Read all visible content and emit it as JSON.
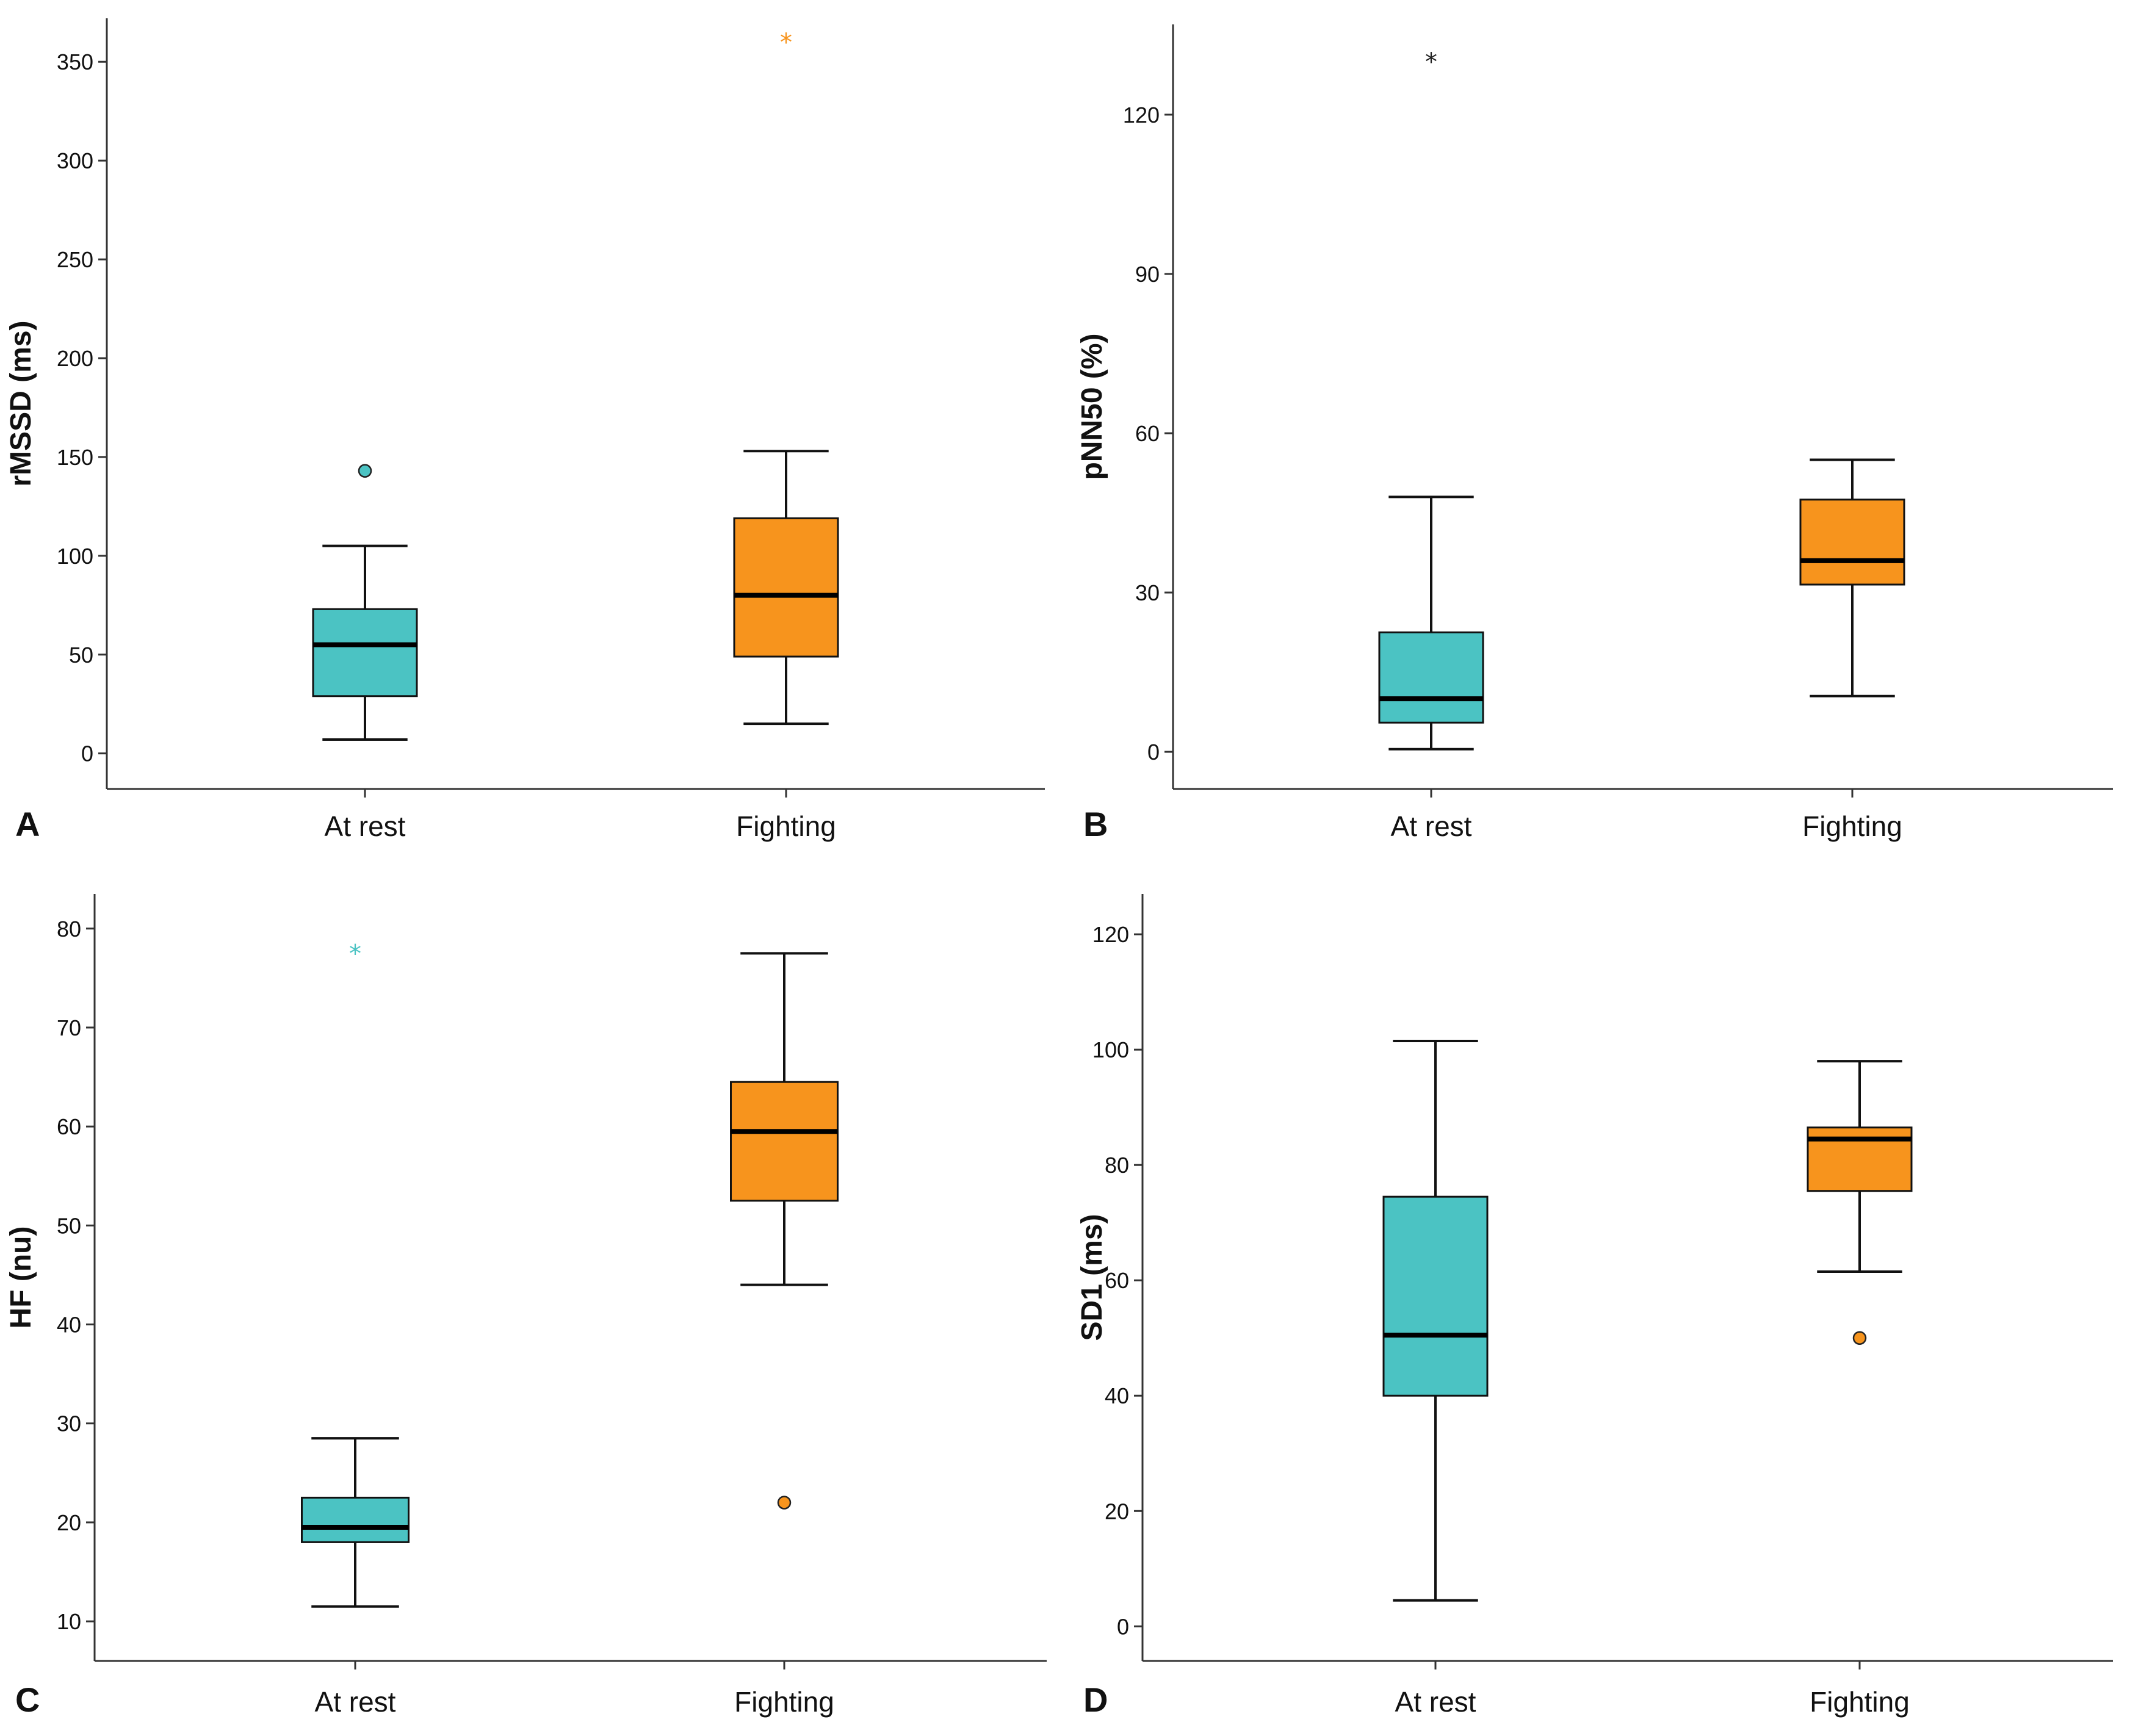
{
  "figure": {
    "colors": {
      "at_rest": "#4bc3c3",
      "fighting": "#f7941d",
      "axis": "#333333",
      "median": "#000000"
    }
  },
  "chart_data": [
    {
      "panel": "A",
      "type": "box",
      "categories": [
        "At rest",
        "Fighting"
      ],
      "ylabel": "rMSSD (ms)",
      "ylim": [
        -18,
        372
      ],
      "yticks": [
        0,
        50,
        100,
        150,
        200,
        250,
        300,
        350
      ],
      "boxes": [
        {
          "category": "At rest",
          "min": 7,
          "q1": 29,
          "median": 55,
          "q3": 73,
          "max": 105,
          "color": "#4bc3c3",
          "outliers": [
            {
              "value": 143,
              "marker": "circle",
              "color": "#4bc3c3"
            }
          ]
        },
        {
          "category": "Fighting",
          "min": 15,
          "q1": 49,
          "median": 80,
          "q3": 119,
          "max": 153,
          "color": "#f7941d",
          "outliers": [
            {
              "value": 360,
              "marker": "star",
              "color": "#f7941d"
            }
          ]
        }
      ]
    },
    {
      "panel": "B",
      "type": "box",
      "categories": [
        "At rest",
        "Fighting"
      ],
      "ylabel": "pNN50 (%)",
      "ylim": [
        -7,
        137
      ],
      "yticks": [
        0,
        30,
        60,
        90,
        120
      ],
      "boxes": [
        {
          "category": "At rest",
          "min": 0.5,
          "q1": 5.5,
          "median": 10,
          "q3": 22.5,
          "max": 48,
          "color": "#4bc3c3",
          "outliers": [
            {
              "value": 130,
              "marker": "star",
              "color": "#222222"
            }
          ]
        },
        {
          "category": "Fighting",
          "min": 10.5,
          "q1": 31.5,
          "median": 36,
          "q3": 47.5,
          "max": 55,
          "color": "#f7941d",
          "outliers": []
        }
      ]
    },
    {
      "panel": "C",
      "type": "box",
      "categories": [
        "At rest",
        "Fighting"
      ],
      "ylabel": "HF (nu)",
      "ylim": [
        6,
        83.5
      ],
      "yticks": [
        10,
        20,
        30,
        40,
        50,
        60,
        70,
        80
      ],
      "boxes": [
        {
          "category": "At rest",
          "min": 11.5,
          "q1": 18,
          "median": 19.5,
          "q3": 22.5,
          "max": 28.5,
          "color": "#4bc3c3",
          "outliers": [
            {
              "value": 77.5,
              "marker": "star",
              "color": "#4bc3c3"
            }
          ]
        },
        {
          "category": "Fighting",
          "min": 44,
          "q1": 52.5,
          "median": 59.5,
          "q3": 64.5,
          "max": 77.5,
          "color": "#f7941d",
          "outliers": [
            {
              "value": 22,
              "marker": "circle",
              "color": "#f7941d"
            }
          ]
        }
      ]
    },
    {
      "panel": "D",
      "type": "box",
      "categories": [
        "At rest",
        "Fighting"
      ],
      "ylabel": "SD1 (ms)",
      "ylim": [
        -6,
        127
      ],
      "yticks": [
        0,
        20,
        40,
        60,
        80,
        100,
        120
      ],
      "boxes": [
        {
          "category": "At rest",
          "min": 4.5,
          "q1": 40,
          "median": 50.5,
          "q3": 74.5,
          "max": 101.5,
          "color": "#4bc3c3",
          "outliers": []
        },
        {
          "category": "Fighting",
          "min": 61.5,
          "q1": 75.5,
          "median": 84.5,
          "q3": 86.5,
          "max": 98,
          "color": "#f7941d",
          "outliers": [
            {
              "value": 50,
              "marker": "circle",
              "color": "#f7941d"
            }
          ]
        }
      ]
    }
  ]
}
